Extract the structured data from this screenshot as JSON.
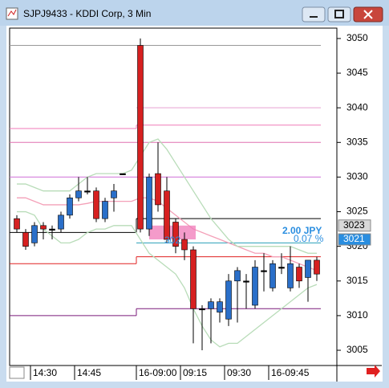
{
  "window_title": "SJPJ9433 - KDDI Corp, 3 Min",
  "chart_data": {
    "type": "candlestick",
    "categories": [
      null,
      null,
      "14:30",
      null,
      null,
      null,
      null,
      "14:45",
      null,
      null,
      null,
      null,
      null,
      null,
      "16-09:00",
      null,
      null,
      null,
      null,
      "09:15",
      null,
      null,
      null,
      null,
      "09:30",
      null,
      null,
      null,
      null,
      "16-09:45",
      null,
      null,
      null,
      null,
      null
    ],
    "open": [
      3024,
      3022,
      3020.5,
      3023,
      3022.5,
      3022.5,
      3024.5,
      3027,
      3028,
      3028,
      3024,
      3027,
      3030.5,
      null,
      3049,
      3022.5,
      3030.5,
      3028,
      3023.5,
      3021,
      3019.5,
      3011,
      3011,
      3010.5,
      3009.5,
      3015,
      3015,
      3011.5,
      3016.5,
      3014,
      3017,
      3014,
      3017,
      3015.5,
      3018
    ],
    "high": [
      3024.5,
      3022.5,
      3023.5,
      3023.5,
      3023,
      3025,
      3027.5,
      3030,
      3030,
      3028.5,
      3027,
      3029,
      3030.5,
      null,
      3050,
      3030.5,
      3035,
      3030,
      3024,
      3022,
      3020,
      3011.5,
      3012.5,
      3012.5,
      3016,
      3017,
      3016,
      3018,
      3019,
      3018,
      3019,
      3020,
      3017.5,
      3018,
      3018.5
    ],
    "low": [
      3022,
      3019.5,
      3020,
      3021,
      3021,
      3022,
      3024,
      3026.5,
      3027.5,
      3023.5,
      3023.5,
      3025,
      3030.5,
      null,
      3022,
      3021.5,
      3025,
      3020.5,
      3019,
      3018,
      3006,
      3005,
      3006,
      3009,
      3008.5,
      3009,
      3011,
      3011,
      3013.5,
      3013.5,
      3016,
      3013.5,
      3014,
      3012,
      3015
    ],
    "close": [
      3022.5,
      3020,
      3023,
      3022.5,
      3022.5,
      3024.5,
      3027,
      3028,
      3028,
      3024,
      3026.5,
      3028,
      3030.5,
      null,
      3022.5,
      3030,
      3026,
      3021,
      3020,
      3019.5,
      3011,
      3011,
      3012,
      3012,
      3015,
      3016.5,
      3015,
      3017,
      3016.5,
      3017.5,
      3017,
      3017.5,
      3015,
      3018,
      3016
    ],
    "up_color": "#2a6fc9",
    "down_color": "#d62020",
    "ylim": [
      3002.8,
      3051.5
    ],
    "yticks": [
      3005,
      3010,
      3015,
      3020,
      3025,
      3030,
      3035,
      3040,
      3045,
      3050
    ],
    "levels": [
      {
        "color": "#999999",
        "values": [
          3049,
          3049
        ]
      },
      {
        "color": "#e8a0d0",
        "values": [
          null,
          3040
        ]
      },
      {
        "color": "#f07ab8",
        "values": [
          3037,
          3037.5
        ]
      },
      {
        "color": "#e070b0",
        "values": [
          3035,
          3035
        ]
      },
      {
        "color": "#d070d8",
        "values": [
          3030,
          3030
        ]
      },
      {
        "color": "#000000",
        "values": [
          3022,
          3024
        ]
      },
      {
        "color": "#2aa0b8",
        "values": [
          null,
          3020.5
        ]
      },
      {
        "color": "#e02020",
        "values": [
          3017.5,
          3018.5
        ]
      },
      {
        "color": "#7a1a7a",
        "values": [
          3010,
          3011
        ]
      }
    ],
    "lines": [
      {
        "color": "#f4a0b8",
        "values": [
          3027,
          3027,
          3026.5,
          3026,
          3026,
          3026,
          3026,
          3026,
          3026.2,
          3026.5,
          3026.5,
          3026.5,
          3026.5,
          3026.5,
          3027,
          3027,
          3026.5,
          3025.5,
          3024.5,
          3023.5,
          3022.5,
          3022,
          3021.5,
          3021,
          3020.5,
          3020,
          3019.5,
          3019,
          3019,
          3018.5,
          3018.5,
          3018,
          3017.5,
          3017,
          3016.5
        ]
      },
      {
        "color": "#b8dcb8",
        "values": [
          3029,
          3029,
          3028.5,
          3028,
          3028,
          3028,
          3028,
          3029,
          3030,
          3030.5,
          3030.5,
          3030.5,
          3030.5,
          3031,
          3033,
          3035,
          3035.5,
          3034,
          3032,
          3030,
          3028,
          3026,
          3024,
          3022.5,
          3021,
          3020,
          3020,
          3020,
          3020,
          3020,
          3020,
          3020,
          3019.5,
          3019,
          3019
        ]
      },
      {
        "color": "#b8dcb8",
        "values": [
          3025,
          3025,
          3024.5,
          3022.5,
          3021.5,
          3020.5,
          3020.5,
          3021,
          3022,
          3022.5,
          3022.5,
          3023,
          3023,
          3023,
          3021,
          3019,
          3018,
          3017,
          3016,
          3014,
          3011,
          3008.5,
          3006.5,
          3005.5,
          3006,
          3006,
          3007,
          3008,
          3009,
          3010,
          3011,
          3012,
          3013,
          3014,
          3014.5
        ]
      }
    ],
    "price_tags": [
      {
        "value": 3023,
        "color": "#d8d8d8",
        "text_color": "#000000"
      },
      {
        "value": 3021,
        "color": "#2a8ee0",
        "text_color": "#ffffff"
      }
    ],
    "annotations": [
      "2.00 JPY",
      "0.07 %",
      "302"
    ]
  }
}
